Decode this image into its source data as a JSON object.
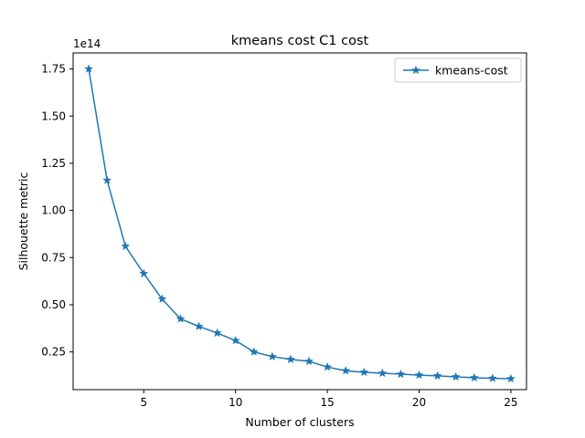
{
  "chart_data": {
    "type": "line",
    "title": "kmeans cost C1 cost",
    "xlabel": "Number of clusters",
    "ylabel": "Silhouette metric",
    "y_offset_label": "1e14",
    "xlim": [
      1.15,
      25.85
    ],
    "ylim": [
      0.05,
      1.835
    ],
    "x_ticks": [
      5,
      10,
      15,
      20,
      25
    ],
    "x_tick_labels": [
      "5",
      "10",
      "15",
      "20",
      "25"
    ],
    "y_ticks": [
      0.25,
      0.5,
      0.75,
      1.0,
      1.25,
      1.5,
      1.75
    ],
    "y_tick_labels": [
      "0.25",
      "0.50",
      "0.75",
      "1.00",
      "1.25",
      "1.50",
      "1.75"
    ],
    "grid": false,
    "legend_position": "top-right",
    "series": [
      {
        "name": "kmeans-cost",
        "color": "#1f77b4",
        "marker": "star",
        "x": [
          2,
          3,
          4,
          5,
          6,
          7,
          8,
          9,
          10,
          11,
          12,
          13,
          14,
          15,
          16,
          17,
          18,
          19,
          20,
          21,
          22,
          23,
          24,
          25
        ],
        "values": [
          1.75,
          1.16,
          0.81,
          0.665,
          0.53,
          0.425,
          0.385,
          0.35,
          0.31,
          0.25,
          0.225,
          0.21,
          0.2,
          0.17,
          0.15,
          0.142,
          0.137,
          0.132,
          0.127,
          0.123,
          0.118,
          0.113,
          0.11,
          0.108
        ]
      }
    ]
  }
}
